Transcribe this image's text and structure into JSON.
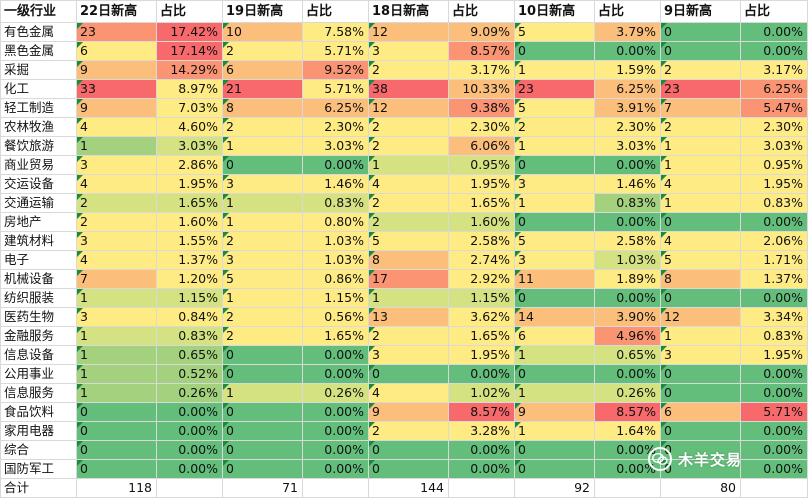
{
  "headers": [
    "一级行业",
    "22日新高",
    "占比",
    "19日新高",
    "占比",
    "18日新高",
    "占比",
    "10日新高",
    "占比",
    "9日新高",
    "占比"
  ],
  "colors": {
    "red": "#f8696b",
    "orange_red": "#fa9473",
    "orange": "#fbbf7b",
    "yellow": "#ffeb84",
    "light_green": "#d4e281",
    "green": "#a3d17e",
    "dark_green": "#63be7b"
  },
  "rows": [
    {
      "name": "有色金属",
      "cells": [
        {
          "v": "23",
          "c": "orange_red"
        },
        {
          "v": "17.42%",
          "c": "red"
        },
        {
          "v": "10",
          "c": "orange"
        },
        {
          "v": "7.58%",
          "c": "yellow"
        },
        {
          "v": "12",
          "c": "orange"
        },
        {
          "v": "9.09%",
          "c": "orange"
        },
        {
          "v": "5",
          "c": "yellow"
        },
        {
          "v": "3.79%",
          "c": "orange"
        },
        {
          "v": "0",
          "c": "dark_green"
        },
        {
          "v": "0.00%",
          "c": "dark_green"
        }
      ]
    },
    {
      "name": "黑色金属",
      "cells": [
        {
          "v": "6",
          "c": "yellow"
        },
        {
          "v": "17.14%",
          "c": "red"
        },
        {
          "v": "2",
          "c": "yellow"
        },
        {
          "v": "5.71%",
          "c": "yellow"
        },
        {
          "v": "3",
          "c": "yellow"
        },
        {
          "v": "8.57%",
          "c": "orange_red"
        },
        {
          "v": "0",
          "c": "dark_green"
        },
        {
          "v": "0.00%",
          "c": "dark_green"
        },
        {
          "v": "0",
          "c": "dark_green"
        },
        {
          "v": "0.00%",
          "c": "dark_green"
        }
      ]
    },
    {
      "name": "采掘",
      "cells": [
        {
          "v": "9",
          "c": "orange"
        },
        {
          "v": "14.29%",
          "c": "orange_red"
        },
        {
          "v": "6",
          "c": "orange"
        },
        {
          "v": "9.52%",
          "c": "orange_red"
        },
        {
          "v": "2",
          "c": "yellow"
        },
        {
          "v": "3.17%",
          "c": "yellow"
        },
        {
          "v": "1",
          "c": "yellow"
        },
        {
          "v": "1.59%",
          "c": "yellow"
        },
        {
          "v": "2",
          "c": "yellow"
        },
        {
          "v": "3.17%",
          "c": "yellow"
        }
      ]
    },
    {
      "name": "化工",
      "cells": [
        {
          "v": "33",
          "c": "red"
        },
        {
          "v": "8.97%",
          "c": "yellow"
        },
        {
          "v": "21",
          "c": "red"
        },
        {
          "v": "5.71%",
          "c": "yellow"
        },
        {
          "v": "38",
          "c": "red"
        },
        {
          "v": "10.33%",
          "c": "orange"
        },
        {
          "v": "23",
          "c": "red"
        },
        {
          "v": "6.25%",
          "c": "orange"
        },
        {
          "v": "23",
          "c": "red"
        },
        {
          "v": "6.25%",
          "c": "orange_red"
        }
      ]
    },
    {
      "name": "轻工制造",
      "cells": [
        {
          "v": "9",
          "c": "orange"
        },
        {
          "v": "7.03%",
          "c": "yellow"
        },
        {
          "v": "8",
          "c": "orange"
        },
        {
          "v": "6.25%",
          "c": "orange"
        },
        {
          "v": "12",
          "c": "orange"
        },
        {
          "v": "9.38%",
          "c": "orange_red"
        },
        {
          "v": "5",
          "c": "yellow"
        },
        {
          "v": "3.91%",
          "c": "orange"
        },
        {
          "v": "7",
          "c": "orange"
        },
        {
          "v": "5.47%",
          "c": "orange_red"
        }
      ]
    },
    {
      "name": "农林牧渔",
      "cells": [
        {
          "v": "4",
          "c": "yellow"
        },
        {
          "v": "4.60%",
          "c": "yellow"
        },
        {
          "v": "2",
          "c": "yellow"
        },
        {
          "v": "2.30%",
          "c": "yellow"
        },
        {
          "v": "2",
          "c": "yellow"
        },
        {
          "v": "2.30%",
          "c": "yellow"
        },
        {
          "v": "2",
          "c": "yellow"
        },
        {
          "v": "2.30%",
          "c": "yellow"
        },
        {
          "v": "2",
          "c": "yellow"
        },
        {
          "v": "2.30%",
          "c": "yellow"
        }
      ]
    },
    {
      "name": "餐饮旅游",
      "cells": [
        {
          "v": "1",
          "c": "green"
        },
        {
          "v": "3.03%",
          "c": "light_green"
        },
        {
          "v": "1",
          "c": "yellow"
        },
        {
          "v": "3.03%",
          "c": "yellow"
        },
        {
          "v": "2",
          "c": "yellow"
        },
        {
          "v": "6.06%",
          "c": "orange"
        },
        {
          "v": "1",
          "c": "yellow"
        },
        {
          "v": "3.03%",
          "c": "yellow"
        },
        {
          "v": "1",
          "c": "yellow"
        },
        {
          "v": "3.03%",
          "c": "yellow"
        }
      ]
    },
    {
      "name": "商业贸易",
      "cells": [
        {
          "v": "3",
          "c": "yellow"
        },
        {
          "v": "2.86%",
          "c": "yellow"
        },
        {
          "v": "0",
          "c": "dark_green"
        },
        {
          "v": "0.00%",
          "c": "dark_green"
        },
        {
          "v": "1",
          "c": "light_green"
        },
        {
          "v": "0.95%",
          "c": "light_green"
        },
        {
          "v": "0",
          "c": "dark_green"
        },
        {
          "v": "0.00%",
          "c": "dark_green"
        },
        {
          "v": "1",
          "c": "yellow"
        },
        {
          "v": "0.95%",
          "c": "yellow"
        }
      ]
    },
    {
      "name": "交运设备",
      "cells": [
        {
          "v": "4",
          "c": "yellow"
        },
        {
          "v": "1.95%",
          "c": "yellow"
        },
        {
          "v": "3",
          "c": "yellow"
        },
        {
          "v": "1.46%",
          "c": "yellow"
        },
        {
          "v": "4",
          "c": "yellow"
        },
        {
          "v": "1.95%",
          "c": "yellow"
        },
        {
          "v": "3",
          "c": "yellow"
        },
        {
          "v": "1.46%",
          "c": "yellow"
        },
        {
          "v": "4",
          "c": "yellow"
        },
        {
          "v": "1.95%",
          "c": "yellow"
        }
      ]
    },
    {
      "name": "交通运输",
      "cells": [
        {
          "v": "2",
          "c": "light_green"
        },
        {
          "v": "1.65%",
          "c": "light_green"
        },
        {
          "v": "1",
          "c": "light_green"
        },
        {
          "v": "0.83%",
          "c": "light_green"
        },
        {
          "v": "2",
          "c": "yellow"
        },
        {
          "v": "1.65%",
          "c": "yellow"
        },
        {
          "v": "1",
          "c": "yellow"
        },
        {
          "v": "0.83%",
          "c": "green"
        },
        {
          "v": "1",
          "c": "yellow"
        },
        {
          "v": "0.83%",
          "c": "yellow"
        }
      ]
    },
    {
      "name": "房地产",
      "cells": [
        {
          "v": "2",
          "c": "yellow"
        },
        {
          "v": "1.60%",
          "c": "yellow"
        },
        {
          "v": "1",
          "c": "yellow"
        },
        {
          "v": "0.80%",
          "c": "yellow"
        },
        {
          "v": "2",
          "c": "light_green"
        },
        {
          "v": "1.60%",
          "c": "light_green"
        },
        {
          "v": "0",
          "c": "dark_green"
        },
        {
          "v": "0.00%",
          "c": "dark_green"
        },
        {
          "v": "0",
          "c": "dark_green"
        },
        {
          "v": "0.00%",
          "c": "dark_green"
        }
      ]
    },
    {
      "name": "建筑材料",
      "cells": [
        {
          "v": "3",
          "c": "yellow"
        },
        {
          "v": "1.55%",
          "c": "yellow"
        },
        {
          "v": "2",
          "c": "yellow"
        },
        {
          "v": "1.03%",
          "c": "yellow"
        },
        {
          "v": "5",
          "c": "yellow"
        },
        {
          "v": "2.58%",
          "c": "yellow"
        },
        {
          "v": "5",
          "c": "yellow"
        },
        {
          "v": "2.58%",
          "c": "yellow"
        },
        {
          "v": "4",
          "c": "yellow"
        },
        {
          "v": "2.06%",
          "c": "yellow"
        }
      ]
    },
    {
      "name": "电子",
      "cells": [
        {
          "v": "4",
          "c": "yellow"
        },
        {
          "v": "1.37%",
          "c": "yellow"
        },
        {
          "v": "3",
          "c": "yellow"
        },
        {
          "v": "1.03%",
          "c": "yellow"
        },
        {
          "v": "8",
          "c": "orange"
        },
        {
          "v": "2.74%",
          "c": "yellow"
        },
        {
          "v": "3",
          "c": "yellow"
        },
        {
          "v": "1.03%",
          "c": "light_green"
        },
        {
          "v": "5",
          "c": "yellow"
        },
        {
          "v": "1.71%",
          "c": "yellow"
        }
      ]
    },
    {
      "name": "机械设备",
      "cells": [
        {
          "v": "7",
          "c": "orange"
        },
        {
          "v": "1.20%",
          "c": "yellow"
        },
        {
          "v": "5",
          "c": "yellow"
        },
        {
          "v": "0.86%",
          "c": "yellow"
        },
        {
          "v": "17",
          "c": "orange_red"
        },
        {
          "v": "2.92%",
          "c": "yellow"
        },
        {
          "v": "11",
          "c": "orange"
        },
        {
          "v": "1.89%",
          "c": "yellow"
        },
        {
          "v": "8",
          "c": "orange"
        },
        {
          "v": "1.37%",
          "c": "yellow"
        }
      ]
    },
    {
      "name": "纺织服装",
      "cells": [
        {
          "v": "1",
          "c": "light_green"
        },
        {
          "v": "1.15%",
          "c": "light_green"
        },
        {
          "v": "1",
          "c": "yellow"
        },
        {
          "v": "1.15%",
          "c": "yellow"
        },
        {
          "v": "1",
          "c": "light_green"
        },
        {
          "v": "1.15%",
          "c": "light_green"
        },
        {
          "v": "0",
          "c": "dark_green"
        },
        {
          "v": "0.00%",
          "c": "dark_green"
        },
        {
          "v": "0",
          "c": "dark_green"
        },
        {
          "v": "0.00%",
          "c": "dark_green"
        }
      ]
    },
    {
      "name": "医药生物",
      "cells": [
        {
          "v": "3",
          "c": "yellow"
        },
        {
          "v": "0.84%",
          "c": "yellow"
        },
        {
          "v": "2",
          "c": "yellow"
        },
        {
          "v": "0.56%",
          "c": "yellow"
        },
        {
          "v": "13",
          "c": "orange"
        },
        {
          "v": "3.62%",
          "c": "yellow"
        },
        {
          "v": "14",
          "c": "orange"
        },
        {
          "v": "3.90%",
          "c": "orange"
        },
        {
          "v": "12",
          "c": "orange"
        },
        {
          "v": "3.34%",
          "c": "yellow"
        }
      ]
    },
    {
      "name": "金融服务",
      "cells": [
        {
          "v": "1",
          "c": "light_green"
        },
        {
          "v": "0.83%",
          "c": "light_green"
        },
        {
          "v": "2",
          "c": "yellow"
        },
        {
          "v": "1.65%",
          "c": "yellow"
        },
        {
          "v": "2",
          "c": "yellow"
        },
        {
          "v": "1.65%",
          "c": "yellow"
        },
        {
          "v": "6",
          "c": "yellow"
        },
        {
          "v": "4.96%",
          "c": "orange_red"
        },
        {
          "v": "1",
          "c": "yellow"
        },
        {
          "v": "0.83%",
          "c": "yellow"
        }
      ]
    },
    {
      "name": "信息设备",
      "cells": [
        {
          "v": "1",
          "c": "green"
        },
        {
          "v": "0.65%",
          "c": "green"
        },
        {
          "v": "0",
          "c": "dark_green"
        },
        {
          "v": "0.00%",
          "c": "dark_green"
        },
        {
          "v": "3",
          "c": "yellow"
        },
        {
          "v": "1.95%",
          "c": "yellow"
        },
        {
          "v": "1",
          "c": "light_green"
        },
        {
          "v": "0.65%",
          "c": "light_green"
        },
        {
          "v": "3",
          "c": "yellow"
        },
        {
          "v": "1.95%",
          "c": "yellow"
        }
      ]
    },
    {
      "name": "公用事业",
      "cells": [
        {
          "v": "1",
          "c": "green"
        },
        {
          "v": "0.52%",
          "c": "green"
        },
        {
          "v": "0",
          "c": "dark_green"
        },
        {
          "v": "0.00%",
          "c": "dark_green"
        },
        {
          "v": "0",
          "c": "dark_green"
        },
        {
          "v": "0.00%",
          "c": "dark_green"
        },
        {
          "v": "0",
          "c": "dark_green"
        },
        {
          "v": "0.00%",
          "c": "dark_green"
        },
        {
          "v": "0",
          "c": "dark_green"
        },
        {
          "v": "0.00%",
          "c": "dark_green"
        }
      ]
    },
    {
      "name": "信息服务",
      "cells": [
        {
          "v": "1",
          "c": "green"
        },
        {
          "v": "0.26%",
          "c": "green"
        },
        {
          "v": "1",
          "c": "light_green"
        },
        {
          "v": "0.26%",
          "c": "light_green"
        },
        {
          "v": "4",
          "c": "yellow"
        },
        {
          "v": "1.02%",
          "c": "light_green"
        },
        {
          "v": "1",
          "c": "light_green"
        },
        {
          "v": "0.26%",
          "c": "light_green"
        },
        {
          "v": "0",
          "c": "dark_green"
        },
        {
          "v": "0.00%",
          "c": "dark_green"
        }
      ]
    },
    {
      "name": "食品饮料",
      "cells": [
        {
          "v": "0",
          "c": "dark_green"
        },
        {
          "v": "0.00%",
          "c": "dark_green"
        },
        {
          "v": "0",
          "c": "dark_green"
        },
        {
          "v": "0.00%",
          "c": "dark_green"
        },
        {
          "v": "9",
          "c": "orange"
        },
        {
          "v": "8.57%",
          "c": "red"
        },
        {
          "v": "9",
          "c": "orange"
        },
        {
          "v": "8.57%",
          "c": "red"
        },
        {
          "v": "6",
          "c": "orange"
        },
        {
          "v": "5.71%",
          "c": "red"
        }
      ]
    },
    {
      "name": "家用电器",
      "cells": [
        {
          "v": "0",
          "c": "dark_green"
        },
        {
          "v": "0.00%",
          "c": "dark_green"
        },
        {
          "v": "0",
          "c": "dark_green"
        },
        {
          "v": "0.00%",
          "c": "dark_green"
        },
        {
          "v": "2",
          "c": "yellow"
        },
        {
          "v": "3.28%",
          "c": "yellow"
        },
        {
          "v": "1",
          "c": "yellow"
        },
        {
          "v": "1.64%",
          "c": "yellow"
        },
        {
          "v": "0",
          "c": "dark_green"
        },
        {
          "v": "0.00%",
          "c": "dark_green"
        }
      ]
    },
    {
      "name": "综合",
      "cells": [
        {
          "v": "0",
          "c": "dark_green"
        },
        {
          "v": "0.00%",
          "c": "dark_green"
        },
        {
          "v": "0",
          "c": "dark_green"
        },
        {
          "v": "0.00%",
          "c": "dark_green"
        },
        {
          "v": "0",
          "c": "dark_green"
        },
        {
          "v": "0.00%",
          "c": "dark_green"
        },
        {
          "v": "0",
          "c": "dark_green"
        },
        {
          "v": "0.00%",
          "c": "dark_green"
        },
        {
          "v": "0",
          "c": "dark_green"
        },
        {
          "v": "0.00%",
          "c": "dark_green"
        }
      ]
    },
    {
      "name": "国防军工",
      "cells": [
        {
          "v": "0",
          "c": "dark_green"
        },
        {
          "v": "0.00%",
          "c": "dark_green"
        },
        {
          "v": "0",
          "c": "dark_green"
        },
        {
          "v": "0.00%",
          "c": "dark_green"
        },
        {
          "v": "0",
          "c": "dark_green"
        },
        {
          "v": "0.00%",
          "c": "dark_green"
        },
        {
          "v": "0",
          "c": "dark_green"
        },
        {
          "v": "0.00%",
          "c": "dark_green"
        },
        {
          "v": "0",
          "c": "dark_green"
        },
        {
          "v": "0.00%",
          "c": "dark_green"
        }
      ]
    }
  ],
  "total": {
    "label": "合计",
    "values": [
      "118",
      "",
      "71",
      "",
      "144",
      "",
      "92",
      "",
      "80",
      ""
    ]
  },
  "watermark": {
    "text": "木羊交易",
    "icon": "wechat-icon"
  }
}
